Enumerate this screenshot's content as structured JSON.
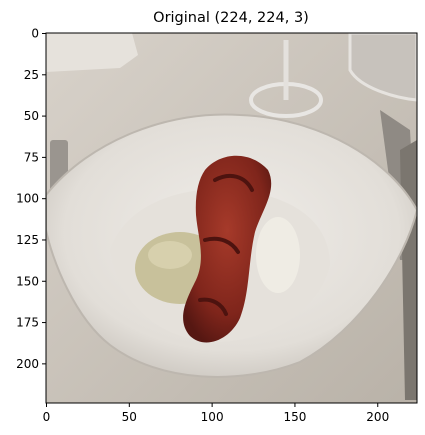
{
  "title": "Original (224, 224, 3)",
  "axes": {
    "x_ticks": [
      0,
      50,
      100,
      150,
      200
    ],
    "y_ticks": [
      0,
      25,
      50,
      75,
      100,
      125,
      150,
      175,
      200
    ],
    "x_range": [
      0,
      224
    ],
    "y_range": [
      0,
      224
    ]
  },
  "image": {
    "subject": "plated dish in a wide white oval bowl on a white tablecloth",
    "colors": {
      "tablecloth": "#cfc9c1",
      "bowl": "#e9e6e2",
      "bowl_shadow": "#b9b4ad",
      "meat": "#8b2a20",
      "meat_dark": "#5e1a14",
      "mash": "#c9c29e",
      "cream": "#efece4"
    }
  }
}
